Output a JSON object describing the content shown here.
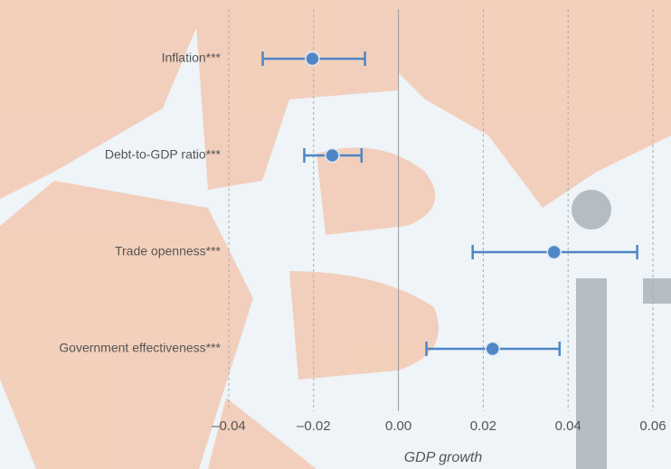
{
  "chart_data": {
    "type": "coefficient",
    "x_label": "GDP growth",
    "categories": [
      "Inflation***",
      "Debt-to-GDP ratio***",
      "Trade openness***",
      "Government effectiveness***"
    ],
    "values": [
      -0.0203,
      -0.0156,
      0.0367,
      0.0222
    ],
    "lower": [
      -0.032,
      -0.0222,
      0.0175,
      0.0066
    ],
    "upper": [
      -0.0079,
      -0.0087,
      0.0563,
      0.038
    ],
    "color": "#4f86c6",
    "xlim": [
      -0.04,
      0.06
    ],
    "xticks": [
      {
        "value": -0.04,
        "label": "–0.04"
      },
      {
        "value": -0.02,
        "label": "–0.02"
      },
      {
        "value": 0,
        "label": "0.00"
      },
      0.02,
      0.04,
      0.06
    ],
    "grid": true
  }
}
